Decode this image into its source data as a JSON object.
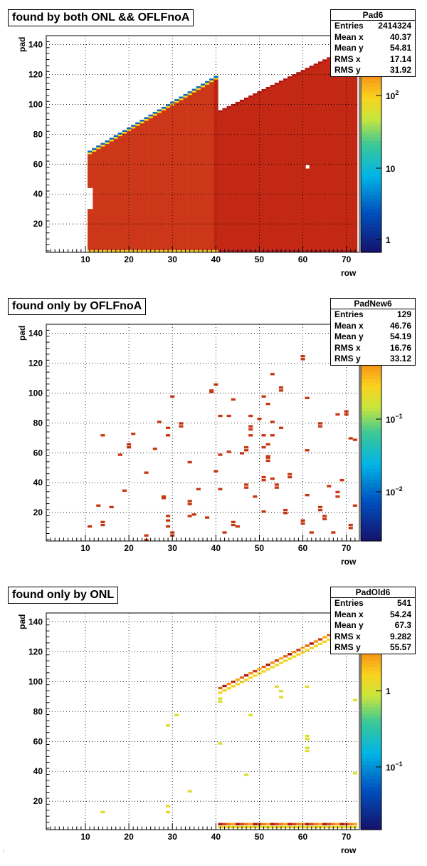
{
  "chart_data": [
    {
      "type": "heatmap",
      "title": "found by both ONL && OFLFnoA",
      "xlabel": "row",
      "ylabel": "pad",
      "xlim": [
        1,
        73
      ],
      "ylim": [
        1,
        146
      ],
      "xticks": [
        "10",
        "20",
        "30",
        "40",
        "50",
        "60",
        "70"
      ],
      "yticks": [
        "20",
        "40",
        "60",
        "80",
        "100",
        "120",
        "140"
      ],
      "colorbar": {
        "scale": "log",
        "ticks": [
          "1",
          "10",
          "10^2"
        ]
      },
      "stats": {
        "name": "Pad6",
        "Entries": "2414324",
        "Mean x": "40.37",
        "Mean y": "54.81",
        "RMS x": "17.14",
        "RMS y": "31.92"
      },
      "pattern": "filled-wedge"
    },
    {
      "type": "heatmap",
      "title": "found only by OFLFnoA",
      "xlabel": "row",
      "ylabel": "pad",
      "xlim": [
        1,
        73
      ],
      "ylim": [
        1,
        146
      ],
      "xticks": [
        "10",
        "20",
        "30",
        "40",
        "50",
        "60",
        "70"
      ],
      "yticks": [
        "20",
        "40",
        "60",
        "80",
        "100",
        "120",
        "140"
      ],
      "colorbar": {
        "scale": "log",
        "ticks": [
          "10^-2",
          "10^-1"
        ]
      },
      "stats": {
        "name": "PadNew6",
        "Entries": "129",
        "Mean x": "46.76",
        "Mean y": "54.19",
        "RMS x": "16.76",
        "RMS y": "33.12"
      },
      "points": [
        [
          11,
          11
        ],
        [
          13,
          25
        ],
        [
          14,
          72
        ],
        [
          14,
          14
        ],
        [
          14,
          12
        ],
        [
          16,
          24
        ],
        [
          18,
          59
        ],
        [
          19,
          35
        ],
        [
          20,
          66
        ],
        [
          20,
          64
        ],
        [
          21,
          73
        ],
        [
          24,
          47
        ],
        [
          24,
          5
        ],
        [
          24,
          2
        ],
        [
          26,
          63
        ],
        [
          27,
          81
        ],
        [
          28,
          31
        ],
        [
          28,
          30
        ],
        [
          29,
          77
        ],
        [
          29,
          72
        ],
        [
          29,
          18
        ],
        [
          29,
          15
        ],
        [
          29,
          11
        ],
        [
          30,
          98
        ],
        [
          30,
          7
        ],
        [
          30,
          5
        ],
        [
          32,
          80
        ],
        [
          32,
          78
        ],
        [
          34,
          54
        ],
        [
          34,
          28
        ],
        [
          34,
          26
        ],
        [
          34,
          18
        ],
        [
          35,
          19
        ],
        [
          36,
          36
        ],
        [
          38,
          17
        ],
        [
          39,
          102
        ],
        [
          39,
          101
        ],
        [
          40,
          106
        ],
        [
          40,
          48
        ],
        [
          41,
          85
        ],
        [
          41,
          59
        ],
        [
          41,
          36
        ],
        [
          42,
          7
        ],
        [
          43,
          85
        ],
        [
          43,
          61
        ],
        [
          44,
          96
        ],
        [
          44,
          14
        ],
        [
          44,
          12
        ],
        [
          45,
          11
        ],
        [
          46,
          60
        ],
        [
          47,
          64
        ],
        [
          47,
          62
        ],
        [
          47,
          39
        ],
        [
          47,
          37
        ],
        [
          48,
          78
        ],
        [
          48,
          72
        ],
        [
          48,
          76
        ],
        [
          48,
          85
        ],
        [
          49,
          31
        ],
        [
          50,
          83
        ],
        [
          51,
          98
        ],
        [
          51,
          72
        ],
        [
          51,
          64
        ],
        [
          51,
          44
        ],
        [
          51,
          42
        ],
        [
          51,
          21
        ],
        [
          52,
          93
        ],
        [
          52,
          66
        ],
        [
          52,
          57
        ],
        [
          52,
          55
        ],
        [
          52,
          58
        ],
        [
          53,
          113
        ],
        [
          53,
          81
        ],
        [
          53,
          72
        ],
        [
          53,
          43
        ],
        [
          54,
          39
        ],
        [
          54,
          37
        ],
        [
          55,
          104
        ],
        [
          55,
          102
        ],
        [
          55,
          77
        ],
        [
          56,
          22
        ],
        [
          56,
          20
        ],
        [
          57,
          46
        ],
        [
          57,
          44
        ],
        [
          60,
          125
        ],
        [
          60,
          123
        ],
        [
          60,
          15
        ],
        [
          60,
          13
        ],
        [
          61,
          97
        ],
        [
          61,
          62
        ],
        [
          61,
          32
        ],
        [
          62,
          7
        ],
        [
          64,
          80
        ],
        [
          64,
          78
        ],
        [
          64,
          24
        ],
        [
          64,
          22
        ],
        [
          65,
          18
        ],
        [
          65,
          16
        ],
        [
          66,
          38
        ],
        [
          67,
          7
        ],
        [
          68,
          86
        ],
        [
          68,
          34
        ],
        [
          68,
          31
        ],
        [
          69,
          42
        ],
        [
          70,
          88
        ],
        [
          70,
          86
        ],
        [
          71,
          12
        ],
        [
          71,
          10
        ],
        [
          71,
          70
        ],
        [
          72,
          69
        ],
        [
          72,
          25
        ]
      ]
    },
    {
      "type": "heatmap",
      "title": "found only by ONL",
      "xlabel": "row",
      "ylabel": "pad",
      "xlim": [
        1,
        73
      ],
      "ylim": [
        1,
        146
      ],
      "xticks": [
        "10",
        "20",
        "30",
        "40",
        "50",
        "60",
        "70"
      ],
      "yticks": [
        "20",
        "40",
        "60",
        "80",
        "100",
        "120",
        "140"
      ],
      "colorbar": {
        "scale": "log",
        "ticks": [
          "10^-1",
          "1"
        ]
      },
      "stats": {
        "name": "PadOld6",
        "Entries": "541",
        "Mean x": "54.24",
        "Mean y": "67.3",
        "RMS x": "9.282",
        "RMS y": "55.57"
      },
      "pattern": "edge-band",
      "points": [
        [
          14,
          13
        ],
        [
          29,
          71
        ],
        [
          29,
          17
        ],
        [
          29,
          13
        ],
        [
          31,
          78
        ],
        [
          34,
          27
        ],
        [
          41,
          59
        ],
        [
          41,
          89
        ],
        [
          41,
          87
        ],
        [
          47,
          38
        ],
        [
          48,
          78
        ],
        [
          54,
          97
        ],
        [
          55,
          90
        ],
        [
          55,
          94
        ],
        [
          61,
          97
        ],
        [
          61,
          64
        ],
        [
          61,
          62
        ],
        [
          61,
          56
        ],
        [
          61,
          54
        ],
        [
          72,
          88
        ],
        [
          72,
          39
        ]
      ]
    }
  ],
  "footnote": ":"
}
